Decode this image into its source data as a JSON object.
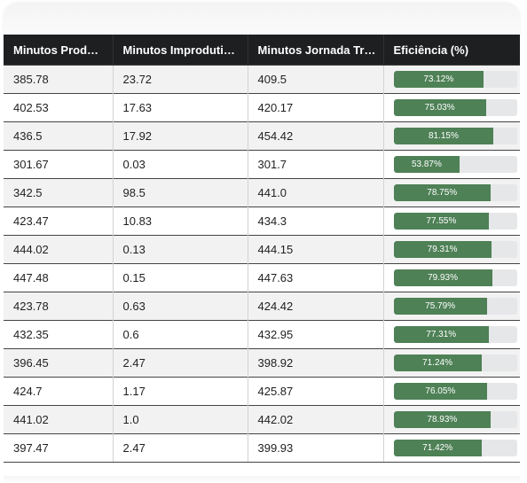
{
  "table": {
    "headers": [
      "Minutos Produt...",
      "Minutos Improdutivos",
      "Minutos Jornada Tra...",
      "Eficiência (%)"
    ],
    "rows": [
      {
        "produtivos": "385.78",
        "improdutivos": "23.72",
        "jornada": "409.5",
        "eficiencia": 73.12,
        "eficiencia_label": "73.12%"
      },
      {
        "produtivos": "402.53",
        "improdutivos": "17.63",
        "jornada": "420.17",
        "eficiencia": 75.03,
        "eficiencia_label": "75.03%"
      },
      {
        "produtivos": "436.5",
        "improdutivos": "17.92",
        "jornada": "454.42",
        "eficiencia": 81.15,
        "eficiencia_label": "81.15%"
      },
      {
        "produtivos": "301.67",
        "improdutivos": "0.03",
        "jornada": "301.7",
        "eficiencia": 53.87,
        "eficiencia_label": "53.87%"
      },
      {
        "produtivos": "342.5",
        "improdutivos": "98.5",
        "jornada": "441.0",
        "eficiencia": 78.75,
        "eficiencia_label": "78.75%"
      },
      {
        "produtivos": "423.47",
        "improdutivos": "10.83",
        "jornada": "434.3",
        "eficiencia": 77.55,
        "eficiencia_label": "77.55%"
      },
      {
        "produtivos": "444.02",
        "improdutivos": "0.13",
        "jornada": "444.15",
        "eficiencia": 79.31,
        "eficiencia_label": "79.31%"
      },
      {
        "produtivos": "447.48",
        "improdutivos": "0.15",
        "jornada": "447.63",
        "eficiencia": 79.93,
        "eficiencia_label": "79.93%"
      },
      {
        "produtivos": "423.78",
        "improdutivos": "0.63",
        "jornada": "424.42",
        "eficiencia": 75.79,
        "eficiencia_label": "75.79%"
      },
      {
        "produtivos": "432.35",
        "improdutivos": "0.6",
        "jornada": "432.95",
        "eficiencia": 77.31,
        "eficiencia_label": "77.31%"
      },
      {
        "produtivos": "396.45",
        "improdutivos": "2.47",
        "jornada": "398.92",
        "eficiencia": 71.24,
        "eficiencia_label": "71.24%"
      },
      {
        "produtivos": "424.7",
        "improdutivos": "1.17",
        "jornada": "425.87",
        "eficiencia": 76.05,
        "eficiencia_label": "76.05%"
      },
      {
        "produtivos": "441.02",
        "improdutivos": "1.0",
        "jornada": "442.02",
        "eficiencia": 78.93,
        "eficiencia_label": "78.93%"
      },
      {
        "produtivos": "397.47",
        "improdutivos": "2.47",
        "jornada": "399.93",
        "eficiencia": 71.42,
        "eficiencia_label": "71.42%"
      }
    ]
  },
  "colors": {
    "header_bg": "#1d1f21",
    "bar_fill": "#4e8156",
    "bar_track": "#e6e7e9"
  }
}
